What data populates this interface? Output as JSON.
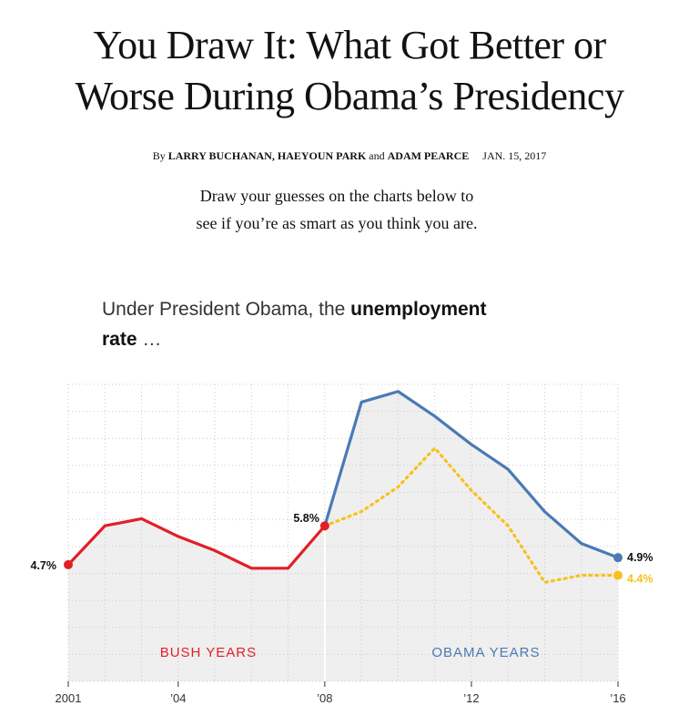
{
  "article": {
    "headline_line1": "You Draw It: What Got Better or",
    "headline_line2": "Worse During Obama’s Presidency",
    "byline_prefix": "By",
    "byline_names": "LARRY BUCHANAN, HAEYOUN PARK",
    "byline_and": "and",
    "byline_last": "ADAM PEARCE",
    "date": "JAN. 15, 2017",
    "dek_line1": "Draw your guesses on the charts below to",
    "dek_line2": "see if you’re as smart as you think you are.",
    "prompt_prefix": "Under President Obama, the",
    "prompt_bold_1": "unemployment",
    "prompt_bold_2": "rate",
    "prompt_suffix": "…"
  },
  "colors": {
    "bush": "#e21f26",
    "obama_actual": "#4a7ab5",
    "guess": "#f7c21a",
    "area": "#efefef"
  },
  "chart_data": {
    "type": "line",
    "x_tick_labels": [
      "2001",
      "’04",
      "’08",
      "’12",
      "’16"
    ],
    "x_tick_values": [
      2001,
      2004,
      2008,
      2012,
      2016
    ],
    "xlim": [
      2001,
      2016
    ],
    "ylim": [
      1.4,
      9.8
    ],
    "grid": true,
    "series": [
      {
        "key": "bush",
        "style": "solid",
        "x": [
          2001,
          2002,
          2003,
          2004,
          2005,
          2006,
          2007,
          2008
        ],
        "y": [
          4.7,
          5.8,
          6.0,
          5.5,
          5.1,
          4.6,
          4.6,
          5.8
        ]
      },
      {
        "key": "obama",
        "style": "solid",
        "x": [
          2008,
          2009,
          2010,
          2011,
          2012,
          2013,
          2014,
          2015,
          2016
        ],
        "y": [
          5.8,
          9.3,
          9.6,
          8.9,
          8.1,
          7.4,
          6.2,
          5.3,
          4.9
        ]
      },
      {
        "key": "guess",
        "style": "dotted",
        "x": [
          2008,
          2009,
          2010,
          2011,
          2012,
          2013,
          2014,
          2015,
          2016
        ],
        "y": [
          5.8,
          6.2,
          6.9,
          8.0,
          6.8,
          5.8,
          4.2,
          4.4,
          4.4
        ]
      }
    ],
    "point_labels": {
      "start": "4.7%",
      "bush_end": "5.8%",
      "obama_end": "4.9%",
      "guess_end": "4.4%"
    },
    "era_labels": {
      "bush": "BUSH YEARS",
      "obama": "OBAMA YEARS"
    }
  }
}
